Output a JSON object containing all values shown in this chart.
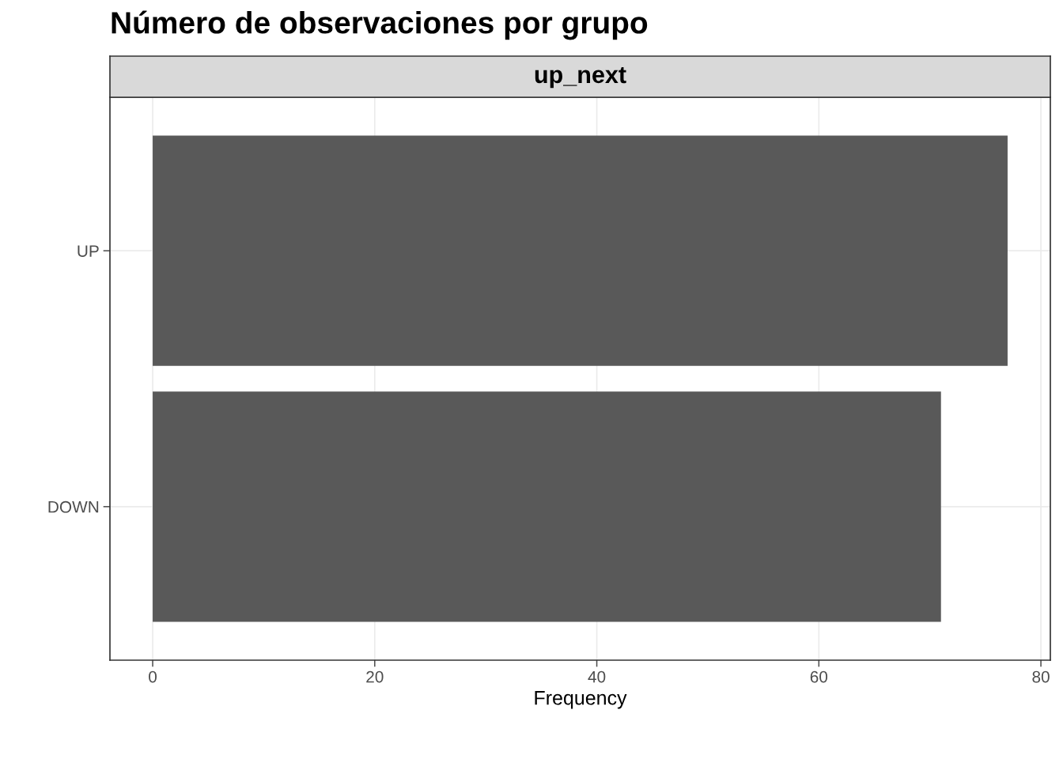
{
  "chart_data": {
    "type": "bar",
    "orientation": "horizontal",
    "title": "Número de observaciones por grupo",
    "subtitle": "up_next",
    "xlabel": "Frequency",
    "categories": [
      "UP",
      "DOWN"
    ],
    "values": [
      77,
      71
    ],
    "color": "#595959",
    "xlim": [
      -3.85,
      80.85
    ],
    "xticks": [
      0,
      20,
      40,
      60,
      80
    ],
    "grid": true
  }
}
